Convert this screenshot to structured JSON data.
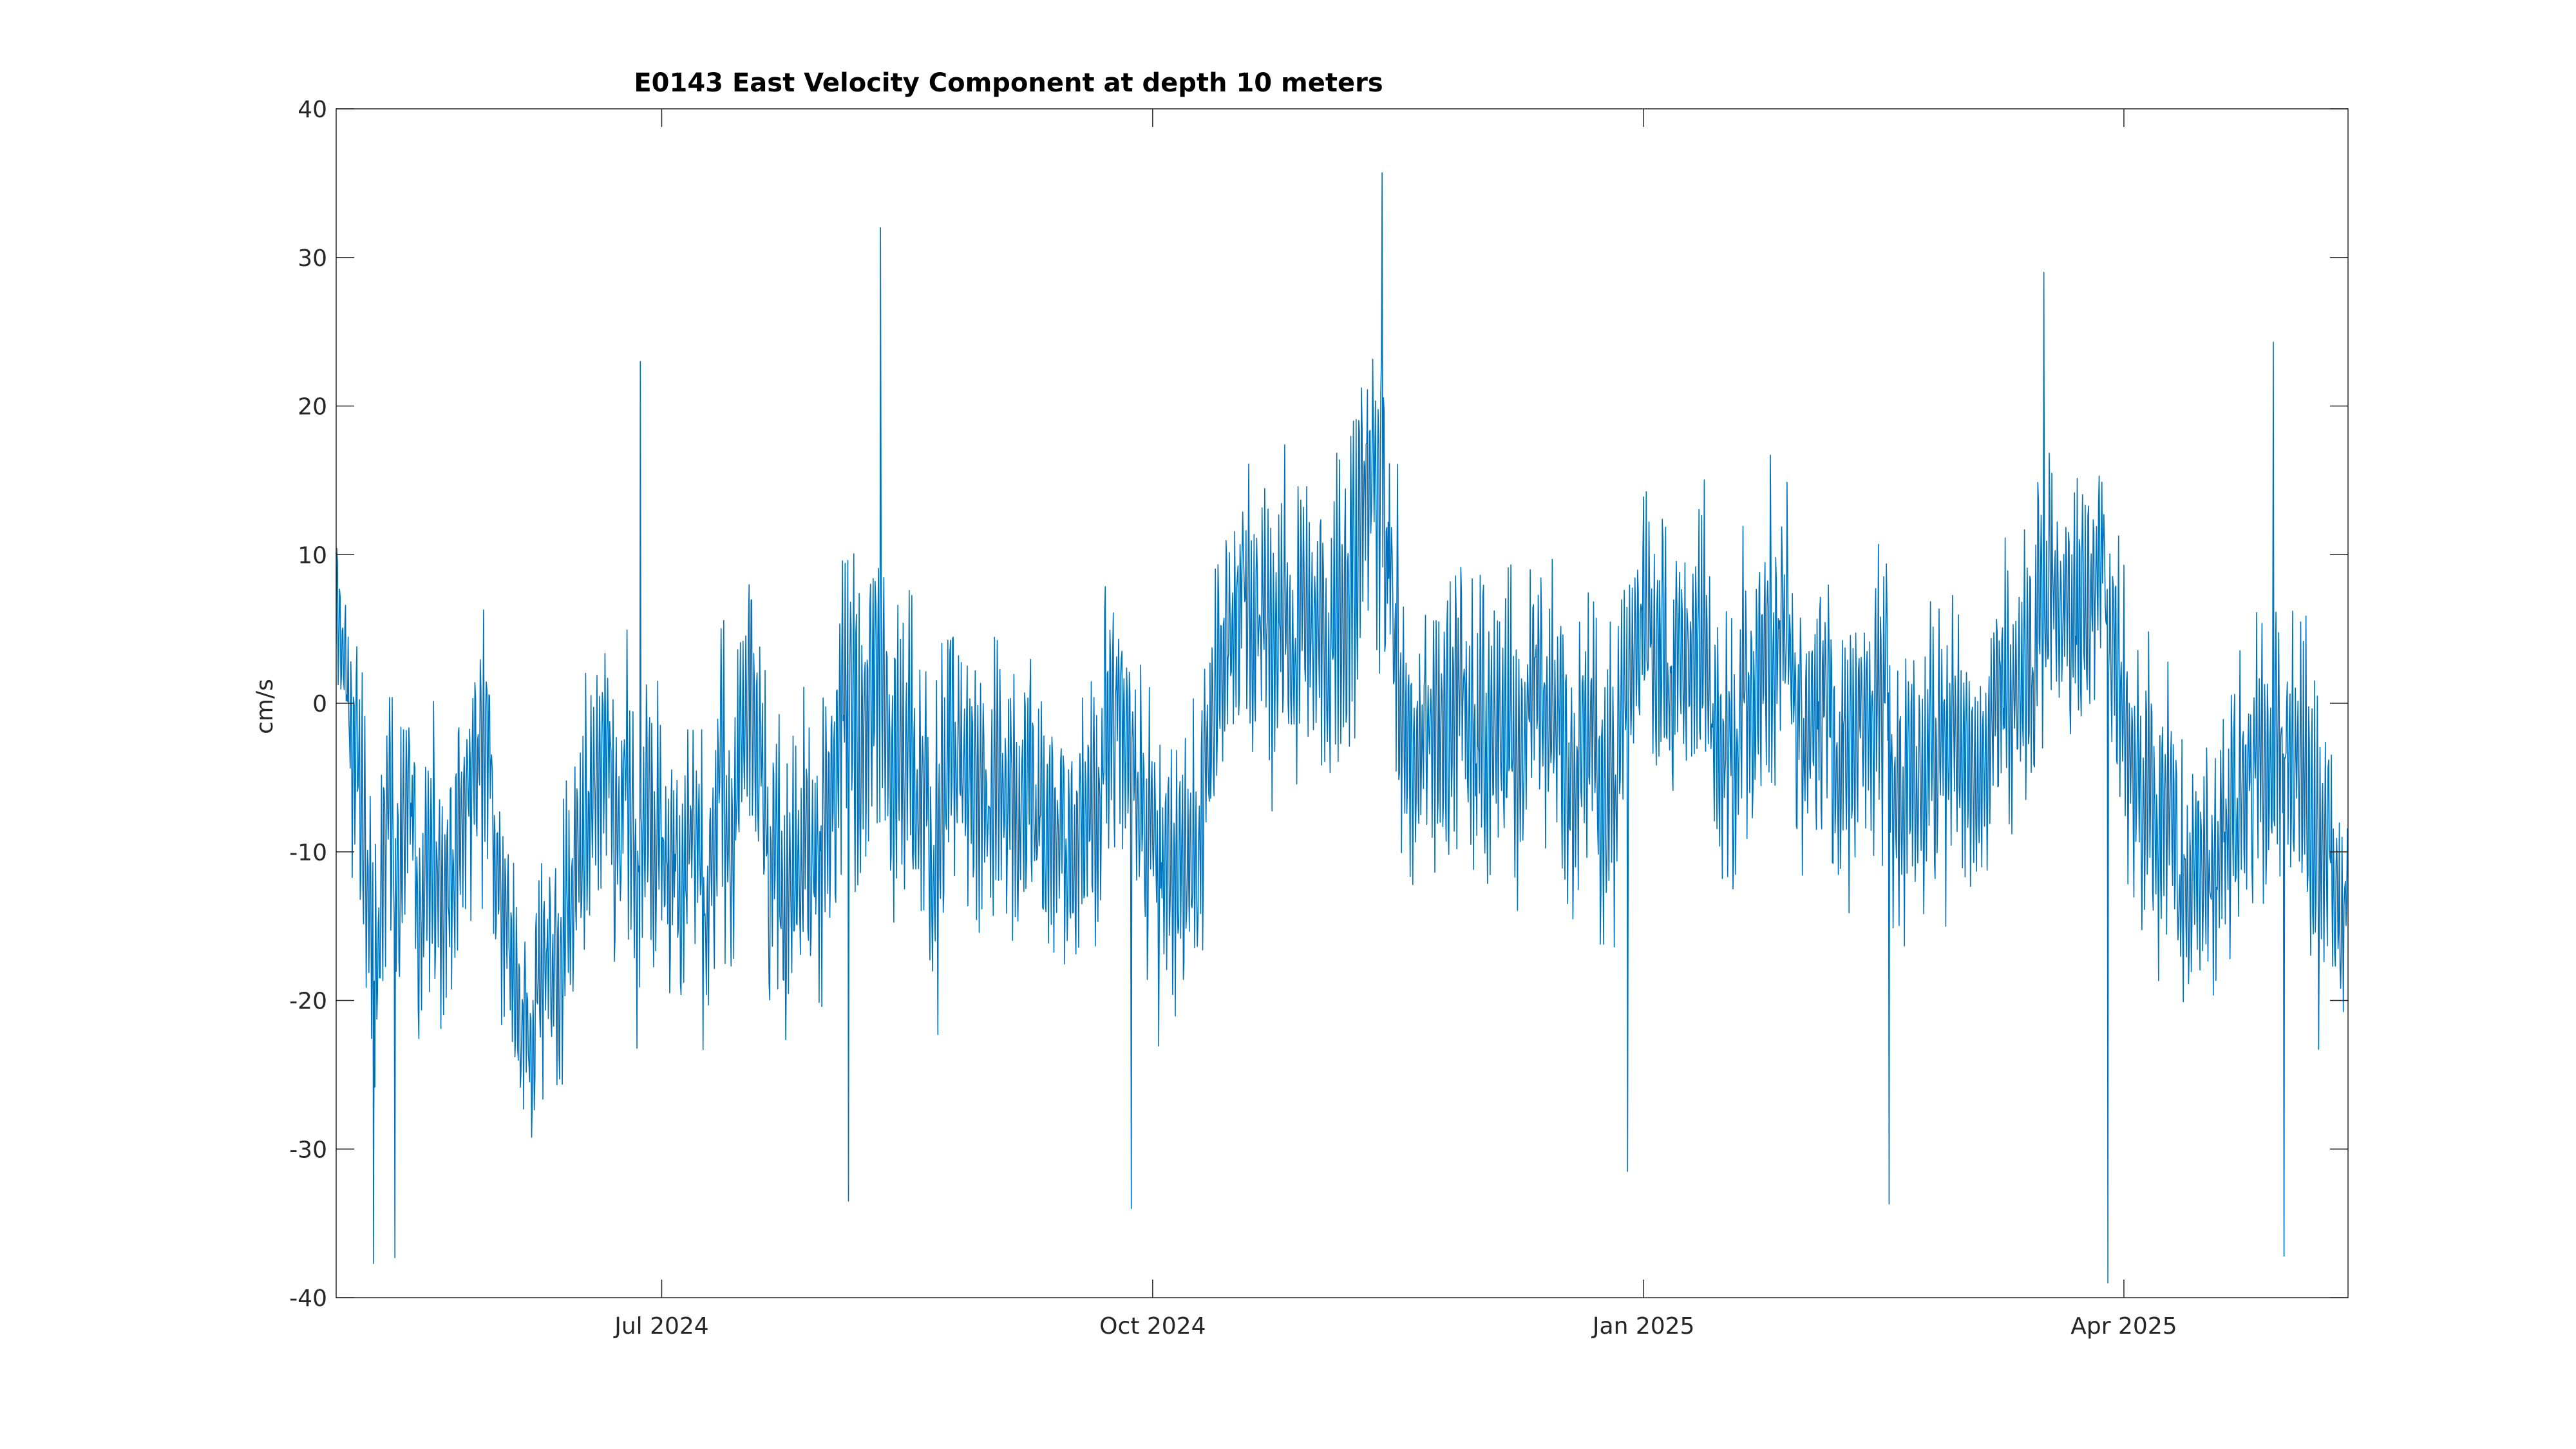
{
  "chart_data": {
    "type": "line",
    "title": "E0143 East Velocity Component at depth 10 meters",
    "ylabel": "cm/s",
    "xlabel": "",
    "xlim": [
      "2024-05-01",
      "2025-05-13"
    ],
    "ylim": [
      -40,
      40
    ],
    "yticks": [
      40,
      30,
      20,
      10,
      0,
      -10,
      -20,
      -30,
      -40
    ],
    "ytick_labels": [
      "40",
      "30",
      "20",
      "10",
      "0",
      "-10",
      "-20",
      "-30",
      "-40"
    ],
    "xticks": [
      {
        "date": "2024-07-01",
        "label": "Jul 2024"
      },
      {
        "date": "2024-10-01",
        "label": "Oct 2024"
      },
      {
        "date": "2025-01-01",
        "label": "Jan 2025"
      },
      {
        "date": "2025-04-01",
        "label": "Apr 2025"
      }
    ],
    "grid": false,
    "line_color": "#0072bd",
    "series": [
      {
        "name": "",
        "sampling": "hourly",
        "daily_envelope_note": "hourly samples oscillating around the daily mean values below",
        "x": [
          "2024-05-01",
          "2024-05-08",
          "2024-05-15",
          "2024-05-22",
          "2024-05-29",
          "2024-06-05",
          "2024-06-12",
          "2024-06-19",
          "2024-06-26",
          "2024-07-03",
          "2024-07-10",
          "2024-07-17",
          "2024-07-24",
          "2024-07-31",
          "2024-08-07",
          "2024-08-14",
          "2024-08-21",
          "2024-08-28",
          "2024-09-04",
          "2024-09-11",
          "2024-09-18",
          "2024-09-25",
          "2024-10-02",
          "2024-10-09",
          "2024-10-16",
          "2024-10-23",
          "2024-10-30",
          "2024-11-06",
          "2024-11-13",
          "2024-11-20",
          "2024-11-27",
          "2024-12-04",
          "2024-12-11",
          "2024-12-18",
          "2024-12-25",
          "2025-01-01",
          "2025-01-08",
          "2025-01-15",
          "2025-01-22",
          "2025-01-29",
          "2025-02-05",
          "2025-02-12",
          "2025-02-19",
          "2025-02-26",
          "2025-03-05",
          "2025-03-12",
          "2025-03-19",
          "2025-03-26",
          "2025-04-02",
          "2025-04-09",
          "2025-04-16",
          "2025-04-23",
          "2025-04-30",
          "2025-05-07",
          "2025-05-13"
        ],
        "values": [
          5,
          -15,
          -10,
          -12,
          -5,
          -20,
          -18,
          -3,
          -8,
          -10,
          -12,
          -2,
          -14,
          -8,
          0,
          -5,
          -10,
          -4,
          -8,
          -5,
          -10,
          -2,
          -12,
          -9,
          5,
          6,
          8,
          4,
          15,
          -5,
          2,
          -3,
          0,
          2,
          -8,
          6,
          4,
          -5,
          2,
          5,
          0,
          2,
          -5,
          0,
          -4,
          2,
          5,
          10,
          -5,
          -8,
          -12,
          -5,
          0,
          -8,
          -15
        ],
        "amplitude": [
          7,
          12,
          10,
          10,
          10,
          8,
          10,
          9,
          11,
          10,
          11,
          11,
          12,
          12,
          12,
          11,
          11,
          10,
          10,
          11,
          10,
          11,
          10,
          12,
          10,
          10,
          11,
          12,
          14,
          10,
          11,
          12,
          10,
          11,
          10,
          10,
          10,
          11,
          10,
          11,
          11,
          12,
          10,
          11,
          9,
          10,
          10,
          12,
          9,
          11,
          10,
          10,
          10,
          12,
          8
        ],
        "extremes": [
          {
            "date": "2024-05-08",
            "value": -37.7
          },
          {
            "date": "2024-05-12",
            "value": -37.3
          },
          {
            "date": "2024-06-27",
            "value": 23.0
          },
          {
            "date": "2024-08-11",
            "value": 32.0
          },
          {
            "date": "2024-08-05",
            "value": -33.5
          },
          {
            "date": "2024-09-27",
            "value": -34.0
          },
          {
            "date": "2024-11-13",
            "value": 35.7
          },
          {
            "date": "2024-12-29",
            "value": -31.5
          },
          {
            "date": "2025-02-16",
            "value": -33.7
          },
          {
            "date": "2025-03-17",
            "value": 29.0
          },
          {
            "date": "2025-03-29",
            "value": -39.0
          },
          {
            "date": "2025-04-29",
            "value": 24.3
          },
          {
            "date": "2025-05-01",
            "value": -37.2
          }
        ]
      }
    ]
  }
}
